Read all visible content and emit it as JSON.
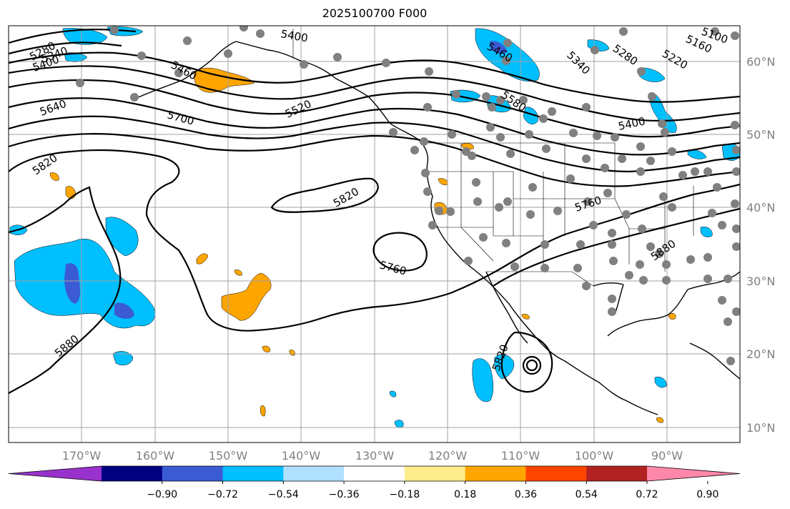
{
  "title": "2025100700 F000",
  "latitudes": [
    "60°N",
    "50°N",
    "40°N",
    "30°N",
    "20°N",
    "10°N"
  ],
  "longitudes": [
    "170°W",
    "160°W",
    "150°W",
    "140°W",
    "130°W",
    "120°W",
    "110°W",
    "100°W",
    "90°W"
  ],
  "contour_labels": [
    "5280",
    "5340",
    "5400",
    "5460",
    "5400",
    "5640",
    "5700",
    "5520",
    "5820",
    "5820",
    "5760",
    "5880",
    "5820",
    "5460",
    "5340",
    "5280",
    "5220",
    "5160",
    "5100",
    "5580",
    "5400",
    "5760",
    "5880"
  ],
  "colorbar": {
    "ticks": [
      "−0.90",
      "−0.72",
      "−0.54",
      "−0.36",
      "−0.18",
      "0.18",
      "0.36",
      "0.54",
      "0.72",
      "0.90"
    ],
    "colors": [
      "#9932cc",
      "#000080",
      "#3b5bd4",
      "#00bfff",
      "#b0e0ff",
      "#ffffff",
      "#ffec8b",
      "#ffa500",
      "#ff4500",
      "#b22222",
      "#ff88aa"
    ]
  },
  "colors": {
    "frame": "#000000",
    "grid": "#a0a0a0",
    "contour": "#000000",
    "station": "#808080"
  }
}
